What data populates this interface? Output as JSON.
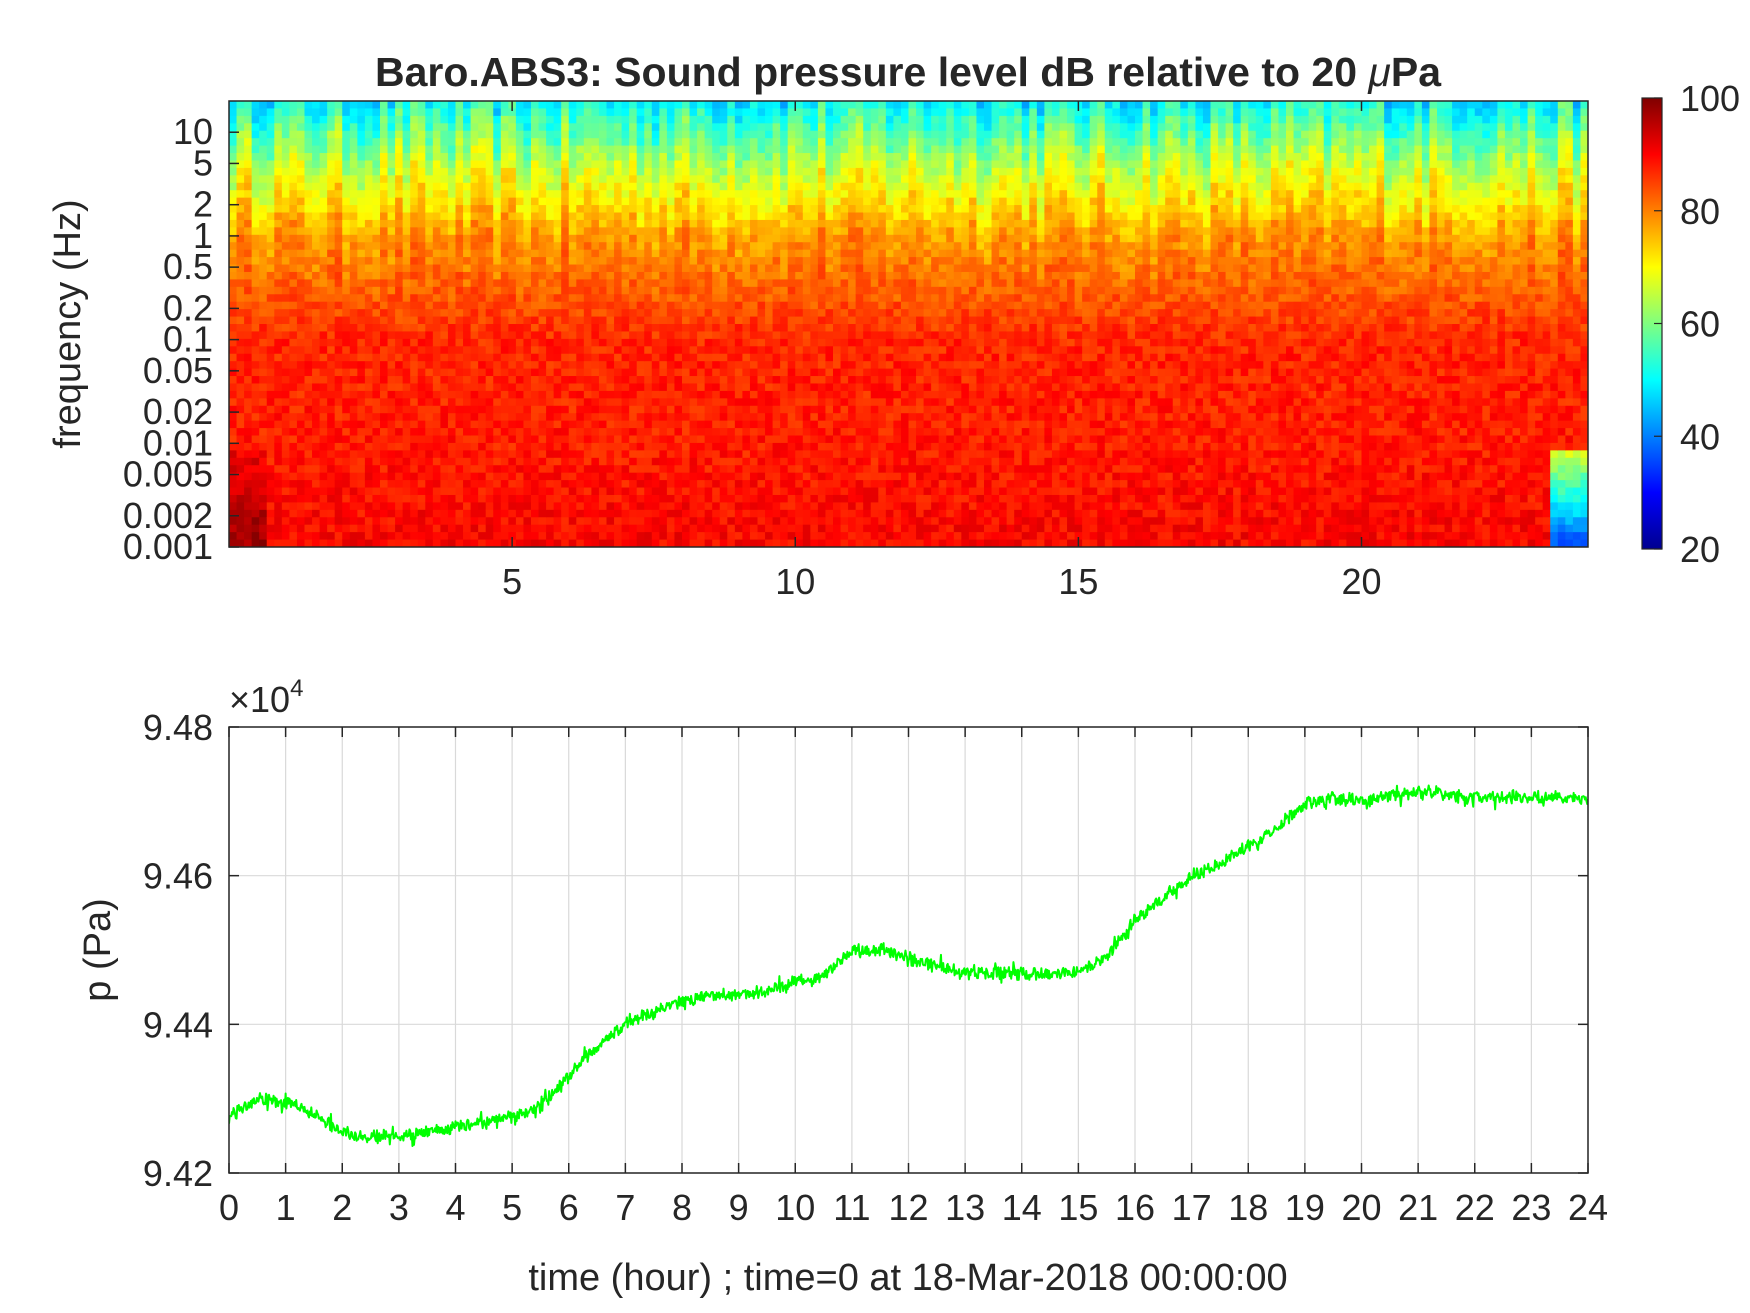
{
  "chart_data": [
    {
      "type": "heatmap",
      "title": "Baro.ABS3: Sound pressure level dB relative to 20 μPa",
      "title_parts": {
        "prefix": "Baro.ABS3: Sound pressure level dB relative to 20 ",
        "mu": "μ",
        "suffix": "Pa"
      },
      "ylabel": "frequency (Hz)",
      "xlabel": "",
      "xlim": [
        0,
        24
      ],
      "yscale": "log",
      "ylim": [
        0.001,
        20
      ],
      "x_ticks": [
        {
          "value": 5,
          "label": "5"
        },
        {
          "value": 10,
          "label": "10"
        },
        {
          "value": 15,
          "label": "15"
        },
        {
          "value": 20,
          "label": "20"
        }
      ],
      "y_ticks": [
        {
          "value": 0.001,
          "label": "0.001"
        },
        {
          "value": 0.002,
          "label": "0.002"
        },
        {
          "value": 0.005,
          "label": "0.005"
        },
        {
          "value": 0.01,
          "label": "0.01"
        },
        {
          "value": 0.02,
          "label": "0.02"
        },
        {
          "value": 0.05,
          "label": "0.05"
        },
        {
          "value": 0.1,
          "label": "0.1"
        },
        {
          "value": 0.2,
          "label": "0.2"
        },
        {
          "value": 0.5,
          "label": "0.5"
        },
        {
          "value": 1,
          "label": "1"
        },
        {
          "value": 2,
          "label": "2"
        },
        {
          "value": 5,
          "label": "5"
        },
        {
          "value": 10,
          "label": "10"
        }
      ],
      "colorbar": {
        "colormap": "jet",
        "clim": [
          20,
          100
        ],
        "ticks": [
          {
            "value": 20,
            "label": "20"
          },
          {
            "value": 40,
            "label": "40"
          },
          {
            "value": 60,
            "label": "60"
          },
          {
            "value": 80,
            "label": "80"
          },
          {
            "value": 100,
            "label": "100"
          }
        ]
      },
      "levels_db": {
        "near_20Hz": 50,
        "at_5Hz": 65,
        "at_1Hz": 78,
        "at_0.1Hz": 87,
        "at_0.01Hz": 88,
        "at_0.001Hz": 90
      }
    },
    {
      "type": "line",
      "ylabel": "p (Pa)",
      "xlabel": "time (hour) ; time=0 at 18-Mar-2018 00:00:00",
      "y_exponent": {
        "base": "10",
        "power": "4",
        "prefix": "×"
      },
      "xlim": [
        0,
        24
      ],
      "ylim": [
        94200,
        94800
      ],
      "grid": true,
      "line_color": "#00ff00",
      "x_ticks": [
        {
          "value": 0,
          "label": "0"
        },
        {
          "value": 1,
          "label": "1"
        },
        {
          "value": 2,
          "label": "2"
        },
        {
          "value": 3,
          "label": "3"
        },
        {
          "value": 4,
          "label": "4"
        },
        {
          "value": 5,
          "label": "5"
        },
        {
          "value": 6,
          "label": "6"
        },
        {
          "value": 7,
          "label": "7"
        },
        {
          "value": 8,
          "label": "8"
        },
        {
          "value": 9,
          "label": "9"
        },
        {
          "value": 10,
          "label": "10"
        },
        {
          "value": 11,
          "label": "11"
        },
        {
          "value": 12,
          "label": "12"
        },
        {
          "value": 13,
          "label": "13"
        },
        {
          "value": 14,
          "label": "14"
        },
        {
          "value": 15,
          "label": "15"
        },
        {
          "value": 16,
          "label": "16"
        },
        {
          "value": 17,
          "label": "17"
        },
        {
          "value": 18,
          "label": "18"
        },
        {
          "value": 19,
          "label": "19"
        },
        {
          "value": 20,
          "label": "20"
        },
        {
          "value": 21,
          "label": "21"
        },
        {
          "value": 22,
          "label": "22"
        },
        {
          "value": 23,
          "label": "23"
        },
        {
          "value": 24,
          "label": "24"
        }
      ],
      "y_ticks": [
        {
          "value": 94200,
          "label": "9.42"
        },
        {
          "value": 94400,
          "label": "9.44"
        },
        {
          "value": 94600,
          "label": "9.46"
        },
        {
          "value": 94800,
          "label": "9.48"
        }
      ],
      "x": [
        0,
        0.5,
        1,
        1.5,
        2,
        2.5,
        3,
        3.5,
        4,
        4.5,
        5,
        5.5,
        6,
        6.5,
        7,
        7.5,
        8,
        8.5,
        9,
        9.5,
        10,
        10.5,
        11,
        11.5,
        12,
        12.5,
        13,
        13.5,
        14,
        14.5,
        15,
        15.5,
        16,
        16.5,
        17,
        17.5,
        18,
        18.5,
        19,
        19.5,
        20,
        20.5,
        21,
        21.5,
        22,
        22.5,
        23,
        23.5,
        24
      ],
      "y": [
        94275,
        94300,
        94295,
        94280,
        94255,
        94248,
        94250,
        94255,
        94262,
        94268,
        94275,
        94290,
        94330,
        94370,
        94400,
        94418,
        94432,
        94438,
        94438,
        94445,
        94458,
        94465,
        94498,
        94500,
        94488,
        94478,
        94468,
        94470,
        94468,
        94468,
        94470,
        94490,
        94540,
        94570,
        94600,
        94615,
        94640,
        94665,
        94695,
        94705,
        94700,
        94708,
        94712,
        94708,
        94705,
        94705,
        94705,
        94705,
        94700
      ]
    }
  ]
}
